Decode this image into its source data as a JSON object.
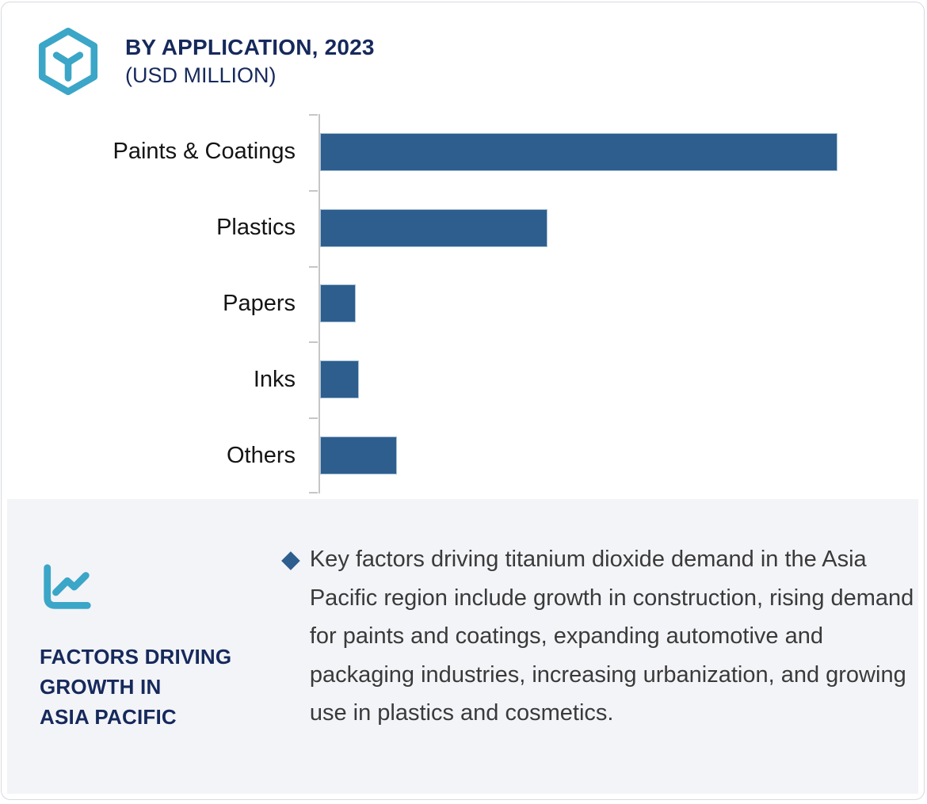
{
  "header": {
    "title": "BY APPLICATION, 2023",
    "subtitle": "(USD MILLION)",
    "icon": "hexagon-cube-icon"
  },
  "chart_data": {
    "type": "bar",
    "orientation": "horizontal",
    "title": "BY APPLICATION, 2023 (USD MILLION)",
    "categories": [
      "Paints & Coatings",
      "Plastics",
      "Papers",
      "Inks",
      "Others"
    ],
    "values": [
      100,
      43.9,
      6.9,
      7.5,
      14.8
    ],
    "units": "USD Million — numeric axis and data labels are not shown; values are relative lengths with longest bar = 100",
    "xlabel": "",
    "ylabel": "",
    "xlim": [
      0,
      117
    ],
    "grid": false,
    "legend": false,
    "value_labels_shown": false,
    "bar_color": "#2d5e8e",
    "axis_color": "#c6c6c6"
  },
  "panel": {
    "icon": "trend-line-chart-icon",
    "heading_lines": [
      "FACTORS DRIVING",
      "GROWTH IN",
      "ASIA PACIFIC"
    ],
    "bullet_marker": "◆",
    "bullet_text": "Key factors driving titanium dioxide demand in the Asia Pacific region include growth in construction, rising demand for paints and coatings, expanding automotive and packaging industries, increasing urbanization, and growing use in plastics and cosmetics."
  },
  "colors": {
    "navy_text": "#16295c",
    "bar_blue": "#2d5e8e",
    "teal_accent": "#3ba6c7",
    "panel_background": "#f3f4f8",
    "card_border": "#d8dae0",
    "body_text": "#3a3a3a"
  }
}
